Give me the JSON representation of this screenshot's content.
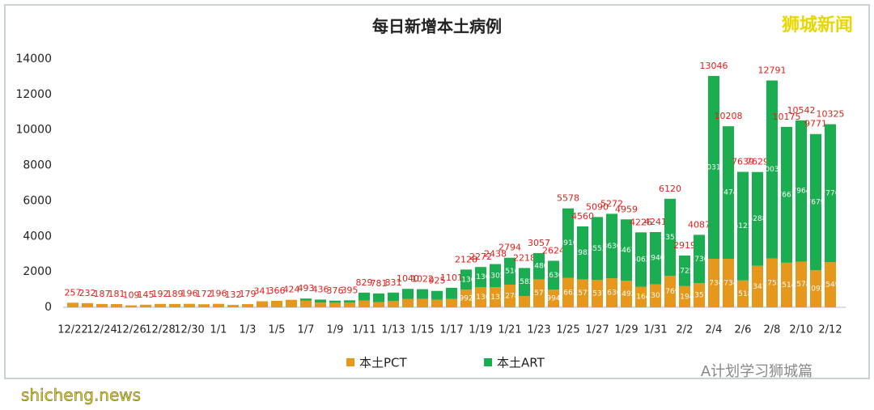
{
  "chart_data": {
    "type": "stacked_bar",
    "title": "每日新增本土病例",
    "categories": [
      "12/22",
      null,
      "12/24",
      null,
      "12/26",
      null,
      "12/28",
      null,
      "12/30",
      null,
      "1/1",
      null,
      "1/3",
      null,
      "1/5",
      null,
      "1/7",
      null,
      "1/9",
      null,
      "1/11",
      null,
      "1/13",
      null,
      "1/15",
      null,
      "1/17",
      null,
      "1/19",
      null,
      "1/21",
      null,
      "1/23",
      null,
      "1/25",
      null,
      "1/27",
      null,
      "1/29",
      null,
      "1/31",
      null,
      "2/2",
      null,
      "2/4",
      null,
      "2/6",
      null,
      "2/8",
      null,
      "2/10",
      null,
      "2/12"
    ],
    "series": [
      {
        "name": "本土PCT",
        "color": "#e5981c",
        "values": [
          257,
          232,
          187,
          181,
          109,
          145,
          192,
          189,
          196,
          172,
          196,
          132,
          179,
          341,
          366,
          424,
          372,
          267,
          258,
          263,
          383,
          295,
          350,
          464,
          470,
          426,
          470,
          992,
          1136,
          1133,
          1278,
          636,
          1577,
          994,
          1662,
          1577,
          1537,
          1636,
          1492,
          1164,
          1301,
          1769,
          1194,
          1357,
          2734,
          2734,
          1518,
          2341,
          2753,
          2514,
          2578,
          2092,
          2549
        ]
      },
      {
        "name": "本土ART",
        "color": "#1aae50",
        "values": [
          0,
          0,
          0,
          0,
          0,
          0,
          0,
          0,
          0,
          0,
          0,
          0,
          0,
          0,
          0,
          0,
          121,
          169,
          118,
          132,
          446,
          486,
          481,
          576,
          552,
          499,
          631,
          1136,
          1136,
          1305,
          1516,
          1582,
          1480,
          1630,
          3916,
          2983,
          3553,
          3636,
          3467,
          3062,
          2940,
          4351,
          1725,
          2730,
          10312,
          7474,
          6121,
          5288,
          10038,
          7661,
          7964,
          7679,
          7776
        ]
      }
    ],
    "totals": [
      257,
      232,
      187,
      181,
      109,
      145,
      192,
      189,
      196,
      172,
      196,
      132,
      179,
      341,
      366,
      424,
      493,
      436,
      376,
      395,
      829,
      781,
      831,
      1040,
      1022,
      925,
      1101,
      2128,
      2272,
      2438,
      2794,
      2218,
      3057,
      2624,
      5578,
      4560,
      5090,
      5272,
      4959,
      4226,
      4241,
      6120,
      2919,
      4087,
      13046,
      10208,
      7639,
      7629,
      12791,
      10175,
      10542,
      9771,
      10325
    ],
    "ylim": [
      0,
      14000
    ],
    "yticks": [
      0,
      2000,
      4000,
      6000,
      8000,
      10000,
      12000,
      14000
    ],
    "grid": false,
    "legend": "bottom",
    "watermarks": [
      "狮城新闻",
      "A计划学习狮城篇",
      "shicheng.news"
    ]
  }
}
